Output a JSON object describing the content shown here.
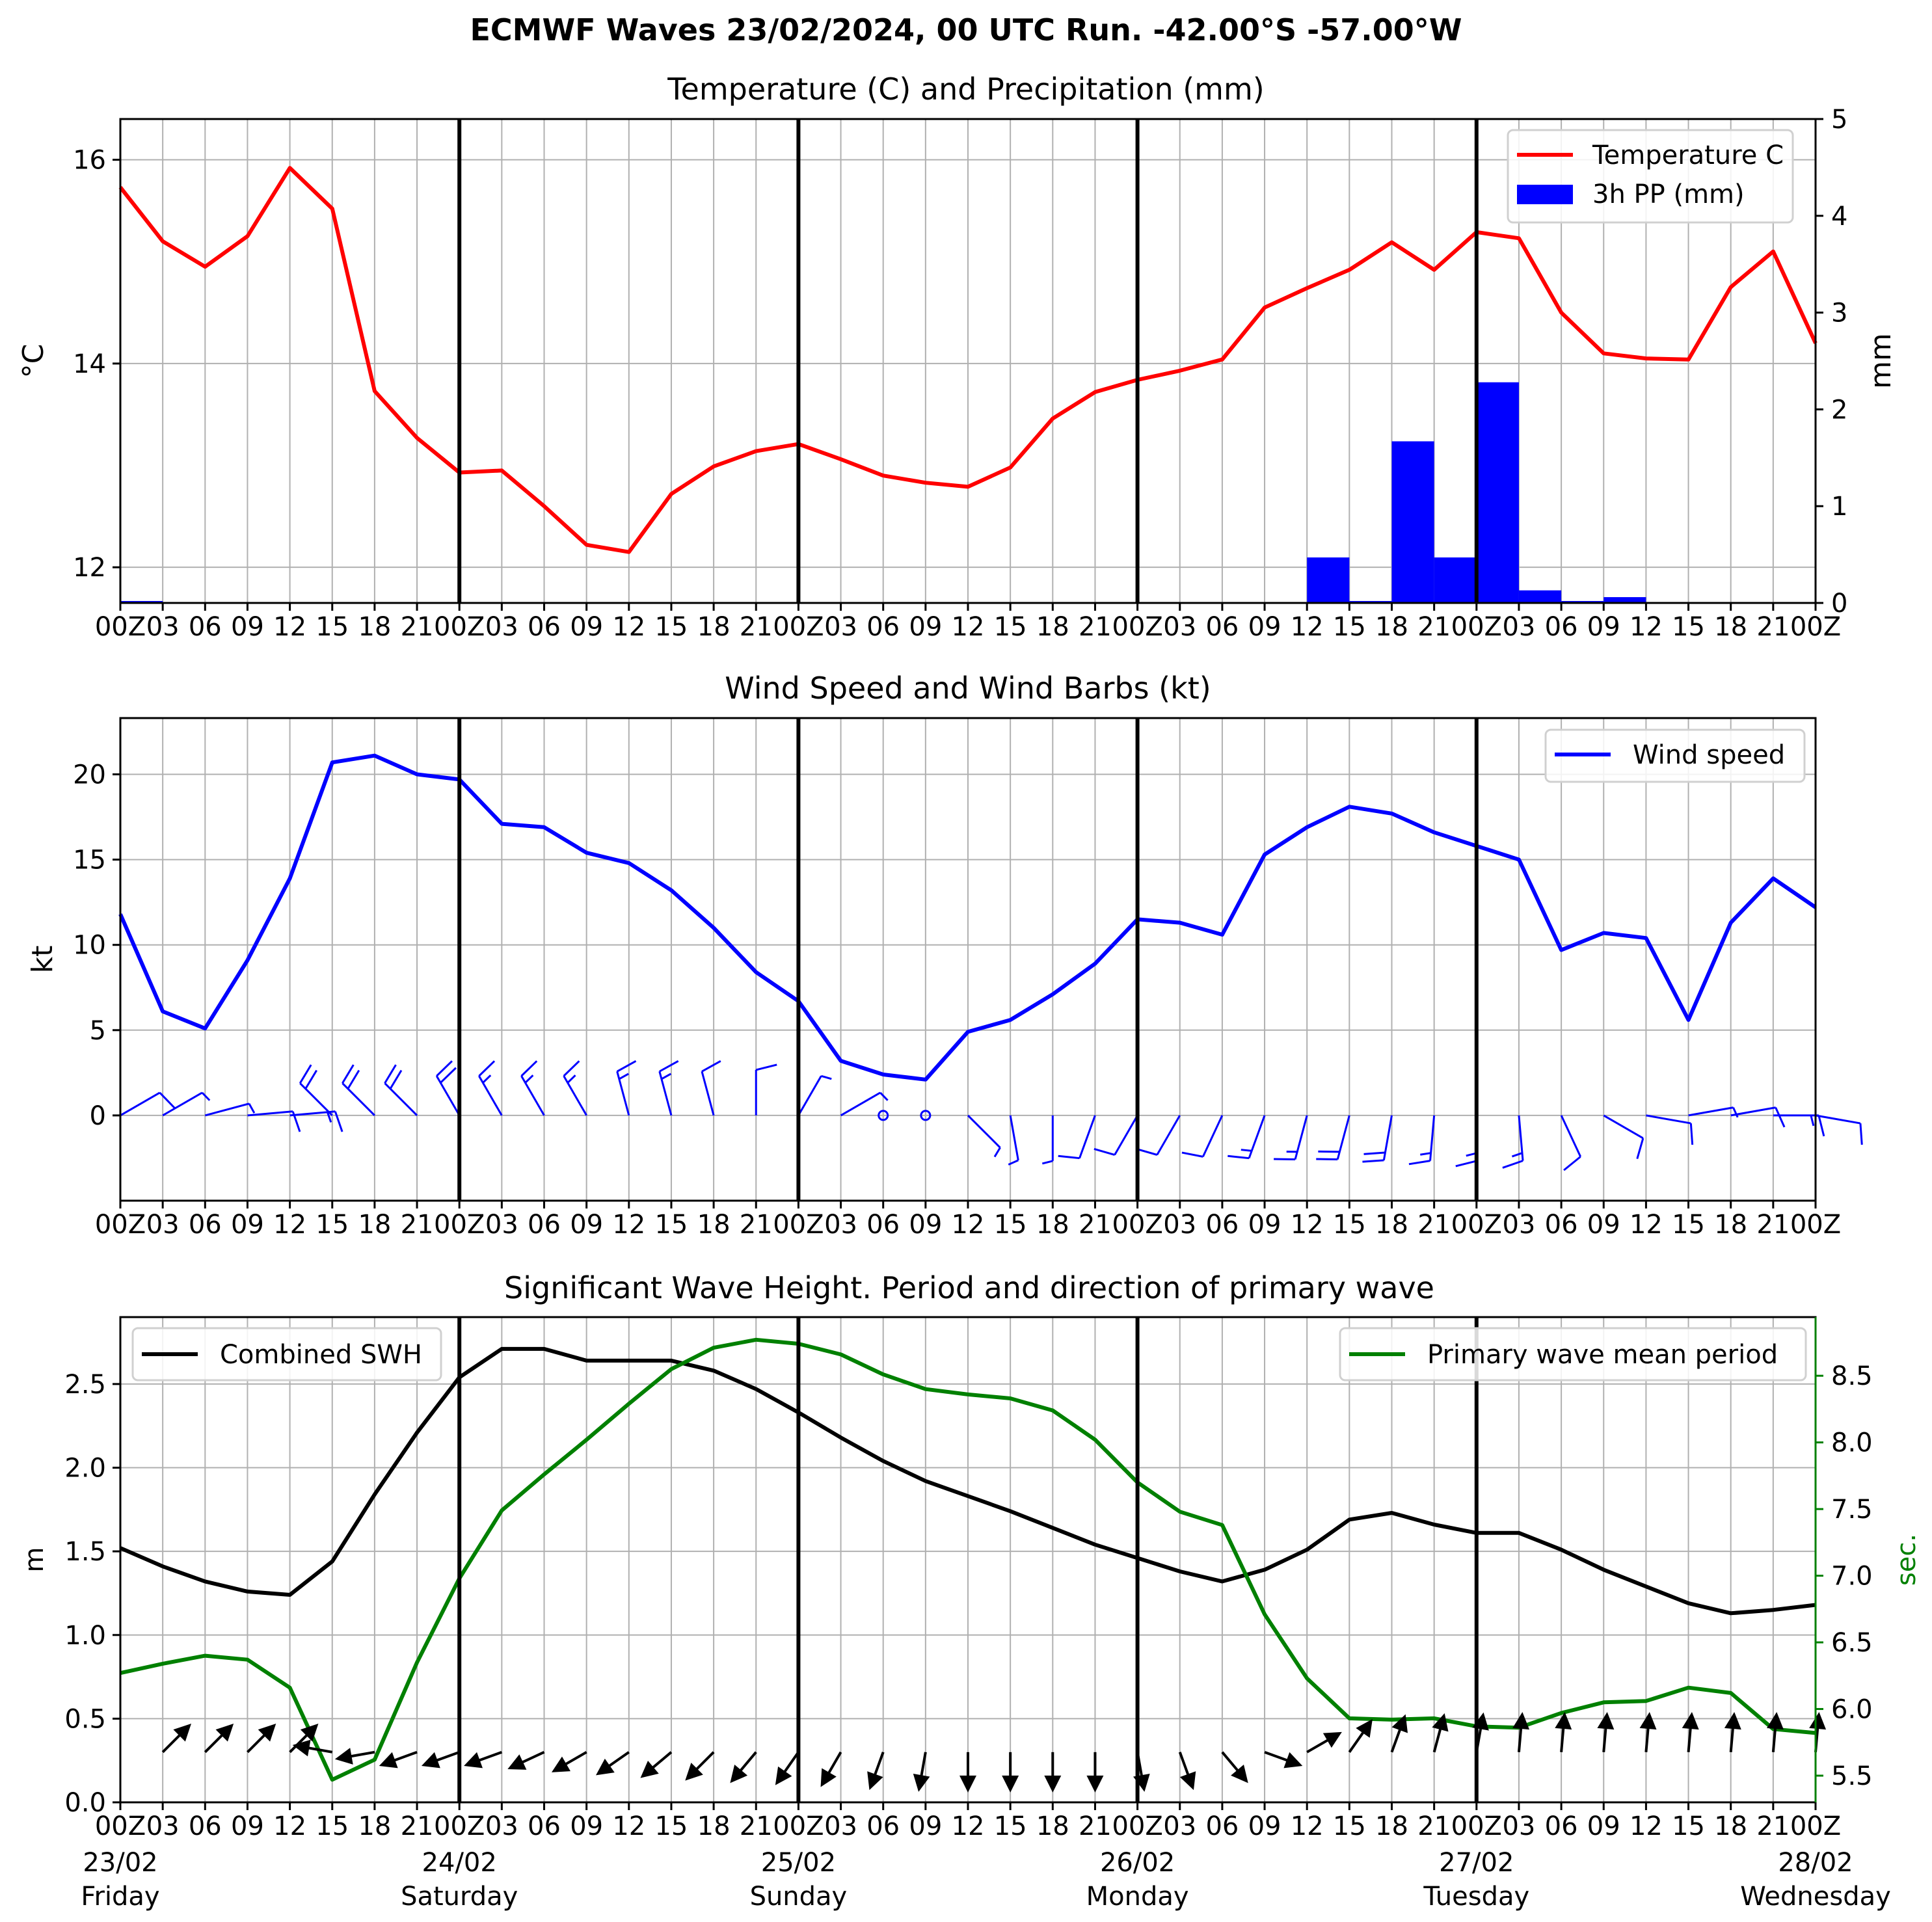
{
  "suptitle": "ECMWF Waves 23/02/2024, 00 UTC Run. -42.00°S -57.00°W",
  "x_tick_labels": [
    "00Z",
    "03",
    "06",
    "09",
    "12",
    "15",
    "18",
    "21",
    "00Z",
    "03",
    "06",
    "09",
    "12",
    "15",
    "18",
    "21",
    "00Z",
    "03",
    "06",
    "09",
    "12",
    "15",
    "18",
    "21",
    "00Z",
    "03",
    "06",
    "09",
    "12",
    "15",
    "18",
    "21",
    "00Z",
    "03",
    "06",
    "09",
    "12",
    "15",
    "18",
    "21",
    "00Z"
  ],
  "day_labels": [
    {
      "date": "23/02",
      "day": "Friday"
    },
    {
      "date": "24/02",
      "day": "Saturday"
    },
    {
      "date": "25/02",
      "day": "Sunday"
    },
    {
      "date": "26/02",
      "day": "Monday"
    },
    {
      "date": "27/02",
      "day": "Tuesday"
    },
    {
      "date": "28/02",
      "day": "Wednesday"
    }
  ],
  "colors": {
    "temperature": "#ff0000",
    "precip": "#0000ff",
    "wind": "#0000ff",
    "swh": "#000000",
    "period": "#008000",
    "grid": "#b0b0b0"
  },
  "chart_data": [
    {
      "type": "line",
      "title": "Temperature (C) and Precipitation (mm)",
      "ylabel": "$^\\circ$C",
      "ylabel2": "mm",
      "x_hours_step": 3,
      "ylim": [
        11.65,
        16.4
      ],
      "y2lim": [
        0,
        5
      ],
      "yticks": [
        12,
        14,
        16
      ],
      "y2ticks": [
        0,
        1,
        2,
        3,
        4,
        5
      ],
      "legend_position": "upper right",
      "series": [
        {
          "name": "Temperature C",
          "axis": "left",
          "style": "line",
          "values": [
            15.73,
            15.2,
            14.95,
            15.25,
            15.92,
            15.52,
            13.73,
            13.27,
            12.93,
            12.95,
            12.6,
            12.22,
            12.15,
            12.72,
            12.99,
            13.14,
            13.21,
            13.06,
            12.9,
            12.83,
            12.79,
            12.98,
            13.46,
            13.72,
            13.84,
            13.93,
            14.04,
            14.55,
            14.74,
            14.92,
            15.19,
            14.92,
            15.29,
            15.23,
            14.5,
            14.1,
            14.05,
            14.04,
            14.75,
            15.1,
            14.2
          ]
        },
        {
          "name": "3h PP (mm)",
          "axis": "right",
          "style": "bar",
          "values": [
            0.02,
            0,
            0,
            0,
            0,
            0,
            0,
            0,
            0,
            0,
            0,
            0,
            0,
            0,
            0,
            0,
            0,
            0,
            0,
            0,
            0,
            0,
            0,
            0,
            0,
            0,
            0,
            0,
            0.47,
            0.02,
            1.67,
            0.47,
            2.28,
            0.13,
            0.02,
            0.06,
            0,
            0,
            0,
            0,
            0
          ]
        }
      ]
    },
    {
      "type": "line",
      "title": "Wind Speed and Wind Barbs (kt)",
      "ylabel": "kt",
      "ylim": [
        -5,
        23.3
      ],
      "yticks": [
        0,
        5,
        10,
        15,
        20
      ],
      "legend_position": "upper right",
      "series": [
        {
          "name": "Wind speed",
          "values": [
            11.8,
            6.1,
            5.1,
            9.1,
            13.9,
            20.7,
            21.1,
            20.0,
            19.7,
            17.1,
            16.9,
            15.4,
            14.8,
            13.2,
            11.0,
            8.4,
            6.7,
            3.2,
            2.4,
            2.1,
            4.9,
            5.6,
            7.1,
            8.9,
            11.5,
            11.3,
            10.6,
            15.3,
            16.9,
            18.1,
            17.7,
            16.6,
            15.8,
            15.0,
            9.7,
            10.7,
            10.4,
            5.6,
            11.3,
            13.9,
            12.2
          ]
        }
      ],
      "barb_directions_deg": [
        60,
        60,
        75,
        85,
        85,
        315,
        315,
        315,
        330,
        330,
        330,
        330,
        345,
        345,
        345,
        0,
        30,
        60,
        90,
        90,
        135,
        170,
        180,
        200,
        210,
        210,
        205,
        200,
        195,
        195,
        190,
        185,
        180,
        175,
        155,
        120,
        100,
        80,
        80,
        90,
        100
      ]
    },
    {
      "type": "line",
      "title": "Significant Wave Height. Period and direction of primary wave",
      "ylabel": "m",
      "ylabel2": "sec.",
      "ylim": [
        0,
        2.9
      ],
      "y2lim": [
        5.3,
        8.94
      ],
      "yticks": [
        0.0,
        0.5,
        1.0,
        1.5,
        2.0,
        2.5
      ],
      "y2ticks": [
        5.5,
        6.0,
        6.5,
        7.0,
        7.5,
        8.0,
        8.5
      ],
      "series": [
        {
          "name": "Combined SWH",
          "axis": "left",
          "legend_position": "upper left",
          "values": [
            1.52,
            1.41,
            1.32,
            1.26,
            1.24,
            1.44,
            1.84,
            2.21,
            2.54,
            2.71,
            2.71,
            2.64,
            2.64,
            2.64,
            2.58,
            2.47,
            2.33,
            2.18,
            2.04,
            1.92,
            1.83,
            1.74,
            1.64,
            1.54,
            1.46,
            1.38,
            1.32,
            1.39,
            1.51,
            1.69,
            1.73,
            1.66,
            1.61,
            1.61,
            1.51,
            1.39,
            1.29,
            1.19,
            1.13,
            1.15,
            1.18
          ]
        },
        {
          "name": "Primary wave mean period",
          "axis": "right",
          "legend_position": "upper right",
          "values": [
            6.27,
            6.34,
            6.4,
            6.37,
            6.16,
            5.47,
            5.62,
            6.35,
            6.98,
            7.49,
            7.76,
            8.02,
            8.29,
            8.55,
            8.71,
            8.77,
            8.74,
            8.66,
            8.51,
            8.4,
            8.36,
            8.33,
            8.24,
            8.02,
            7.7,
            7.48,
            7.38,
            6.71,
            6.23,
            5.93,
            5.92,
            5.93,
            5.87,
            5.86,
            5.97,
            6.05,
            6.06,
            6.16,
            6.12,
            5.85,
            5.82
          ]
        }
      ],
      "arrow_directions_deg": [
        45,
        45,
        45,
        45,
        45,
        280,
        260,
        250,
        250,
        250,
        245,
        240,
        235,
        230,
        225,
        220,
        215,
        210,
        200,
        190,
        180,
        180,
        180,
        180,
        170,
        160,
        140,
        110,
        60,
        35,
        20,
        15,
        10,
        5,
        5,
        5,
        5,
        5,
        5,
        5,
        5
      ]
    }
  ]
}
